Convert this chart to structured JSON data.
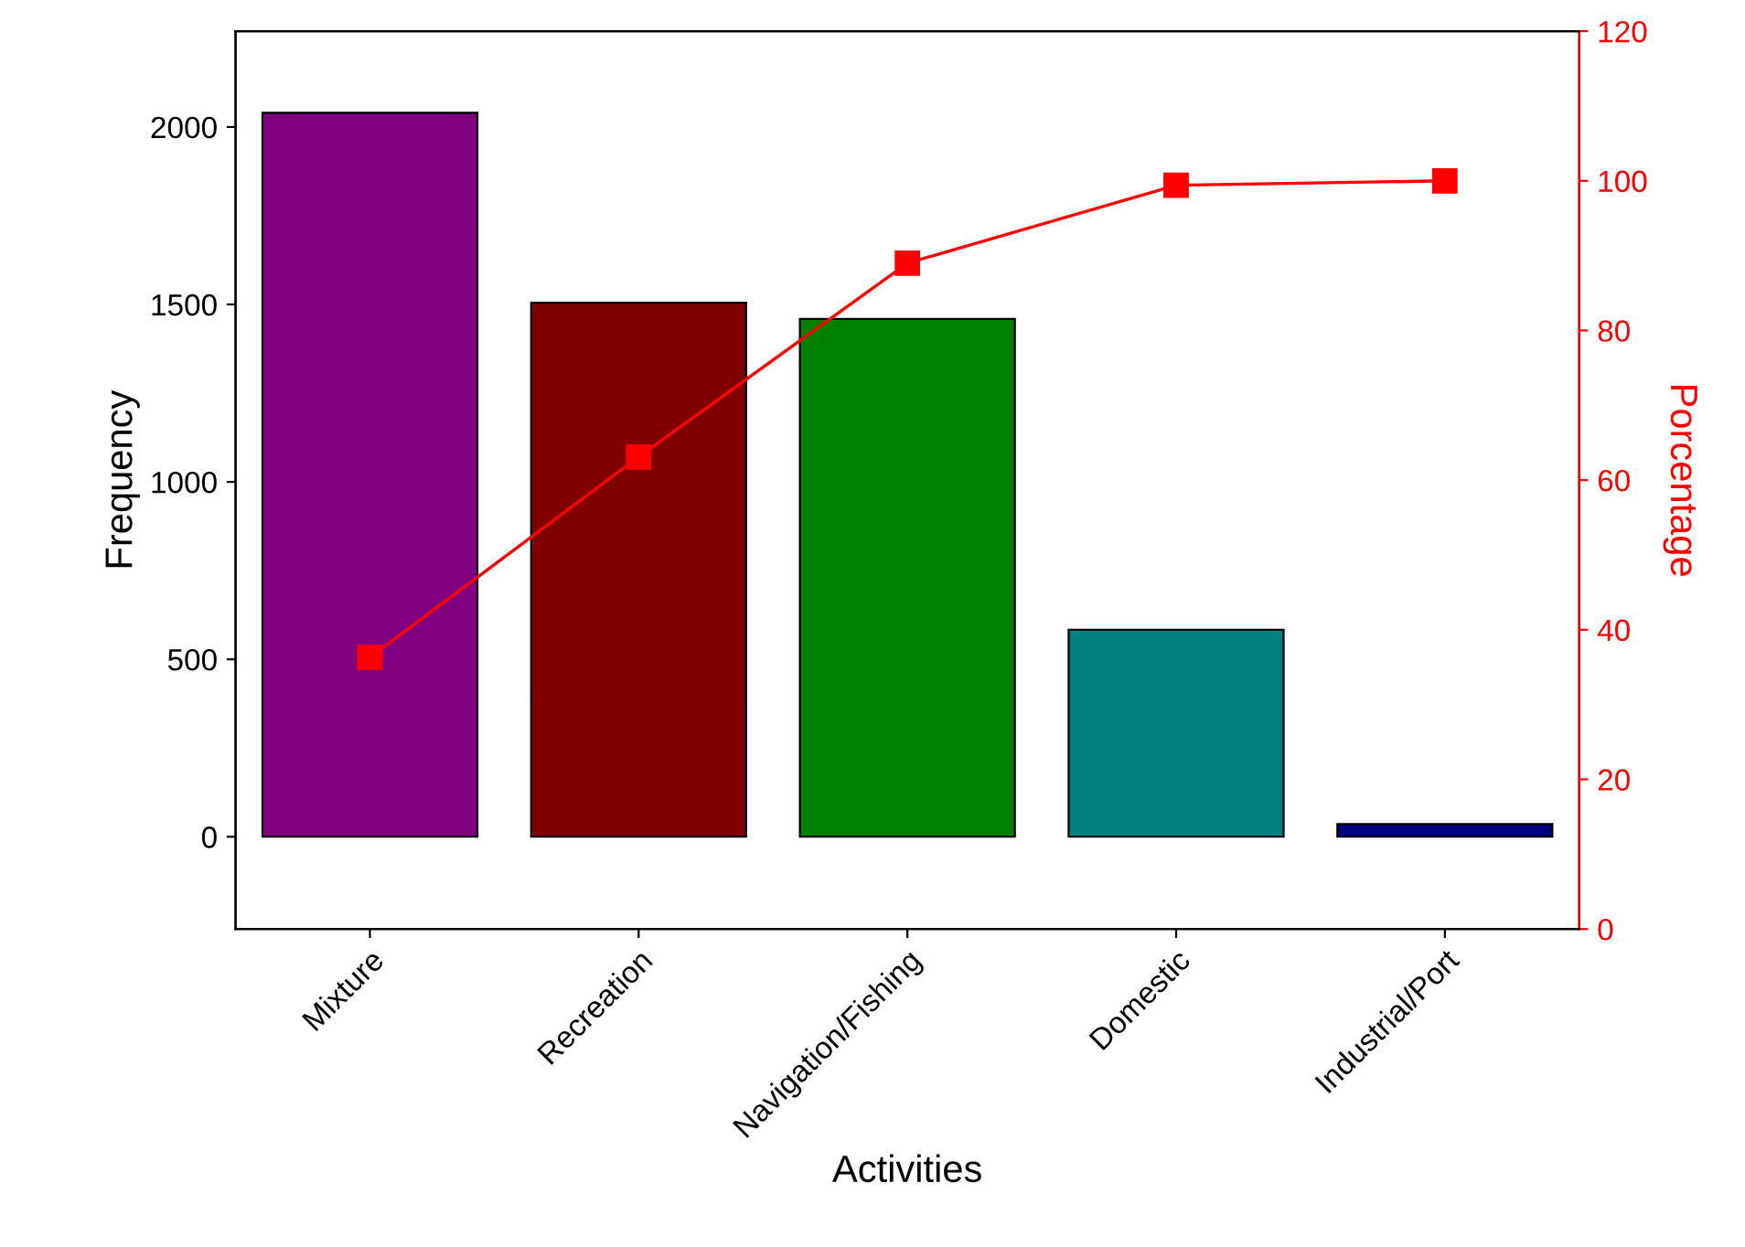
{
  "chart_data": {
    "type": "bar",
    "xlabel": "Activities",
    "ylabel": "Frequency",
    "y2label": "Porcentage",
    "categories": [
      "Mixture",
      "Recreation",
      "Navigation/Fishing",
      "Domestic",
      "Industrial/Port"
    ],
    "series": [
      {
        "colors": [
          "#800080",
          "#800000",
          "#008000",
          "#008080",
          "#000080"
        ],
        "values": [
          2040,
          1505,
          1459,
          583,
          36
        ]
      },
      {
        "type": "line",
        "axis": "y2",
        "color": "#ff0000",
        "marker": "square",
        "values": [
          36.3,
          63.1,
          89.0,
          99.4,
          100
        ]
      }
    ],
    "ylim": [
      -260,
      2270
    ],
    "yticks": [
      0,
      500,
      1000,
      1500,
      2000
    ],
    "y2lim": [
      0,
      120
    ],
    "y2ticks": [
      0,
      20,
      40,
      60,
      80,
      100,
      120
    ],
    "grid": false,
    "legend": false
  }
}
